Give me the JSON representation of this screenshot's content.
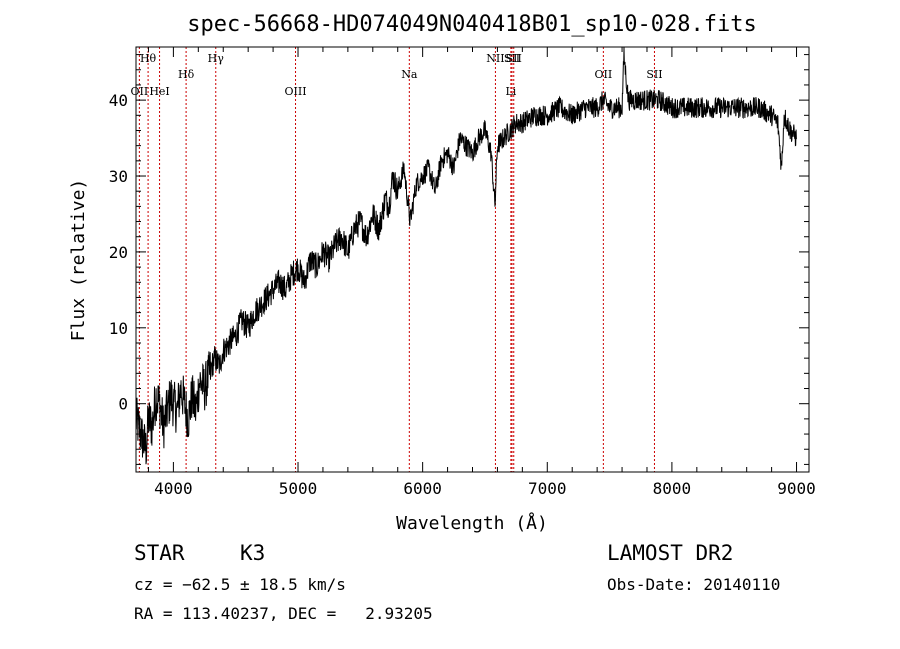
{
  "chart_data": {
    "type": "line",
    "title": "spec-56668-HD074049N040418B01_sp10-028.fits",
    "xlabel": "Wavelength (Å)",
    "ylabel": "Flux (relative)",
    "xlim": [
      3700,
      9100
    ],
    "ylim": [
      -9,
      47
    ],
    "xticks": [
      4000,
      5000,
      6000,
      7000,
      8000,
      9000
    ],
    "yticks": [
      0,
      10,
      20,
      30,
      40
    ],
    "grid": false,
    "line_color": "#000000",
    "marker_color": "#cc0000",
    "spectral_lines": [
      {
        "label": "Hθ",
        "x": 3797,
        "row": 1
      },
      {
        "label": "OII",
        "x": 3727,
        "row": 2
      },
      {
        "label": "HeI",
        "x": 3889,
        "row": 2
      },
      {
        "label": "Hδ",
        "x": 4102,
        "row": 1.5
      },
      {
        "label": "Hγ",
        "x": 4340,
        "row": 1
      },
      {
        "label": "OIII",
        "x": 4980,
        "row": 2
      },
      {
        "label": "Na",
        "x": 5893,
        "row": 1.5
      },
      {
        "label": "NII",
        "x": 6584,
        "row": 1
      },
      {
        "label": "SII",
        "x": 6717,
        "row": 1
      },
      {
        "label": "Li",
        "x": 6708,
        "row": 2
      },
      {
        "label": "SII",
        "x": 6731,
        "row": 1
      },
      {
        "label": "OII",
        "x": 7450,
        "row": 1.5
      },
      {
        "label": "SII",
        "x": 7860,
        "row": 1.5
      }
    ],
    "series": [
      {
        "x": [
          3700,
          3740,
          3780,
          3800,
          3830,
          3860,
          3890,
          3920,
          3950,
          3980,
          4000,
          4030,
          4060,
          4090,
          4120,
          4150,
          4180,
          4210,
          4250,
          4290,
          4330,
          4370,
          4400,
          4450,
          4500,
          4550,
          4600,
          4650,
          4700,
          4750,
          4800,
          4850,
          4900,
          4950,
          5000,
          5050,
          5100,
          5150,
          5200,
          5250,
          5300,
          5350,
          5400,
          5450,
          5500,
          5550,
          5600,
          5650,
          5700,
          5730,
          5760,
          5800,
          5850,
          5900,
          5950,
          6000,
          6050,
          6100,
          6150,
          6200,
          6250,
          6300,
          6350,
          6400,
          6450,
          6500,
          6550,
          6580,
          6600,
          6650,
          6700,
          6750,
          6800,
          6900,
          7000,
          7100,
          7200,
          7300,
          7400,
          7450,
          7500,
          7550,
          7600,
          7615,
          7650,
          7700,
          7800,
          7900,
          8000,
          8100,
          8200,
          8300,
          8400,
          8500,
          8600,
          8700,
          8800,
          8850,
          8880,
          8900,
          8950,
          9000
        ],
        "y": [
          -2,
          -4,
          -6,
          -2,
          -3,
          1,
          0,
          -3,
          -1,
          1,
          0,
          -1,
          2,
          0,
          -2,
          1,
          -1,
          3,
          2,
          4,
          6,
          5,
          7,
          8,
          9,
          11,
          10,
          12,
          13,
          14,
          15,
          16,
          15,
          17,
          18,
          16,
          19,
          18,
          20,
          19,
          21,
          22,
          20,
          23,
          24,
          22,
          25,
          23,
          27,
          26,
          30,
          28,
          31,
          24,
          29,
          30,
          31,
          28,
          32,
          33,
          31,
          35,
          34,
          33,
          35,
          36,
          33,
          26,
          34,
          35,
          36,
          37,
          37,
          38,
          38,
          39,
          38,
          39,
          39,
          40,
          39,
          39,
          39,
          46,
          40,
          40,
          40,
          40,
          39,
          39,
          39,
          39,
          39,
          39,
          39,
          39,
          38,
          37,
          31,
          38,
          36,
          35
        ]
      }
    ],
    "annotations": {
      "object_class": "STAR",
      "subclass": "K3",
      "survey": "LAMOST DR2",
      "cz": "cz = −62.5 ± 18.5 km/s",
      "obs_date": "Obs-Date: 20140110",
      "coords": "RA = 113.40237, DEC =   2.93205"
    }
  }
}
